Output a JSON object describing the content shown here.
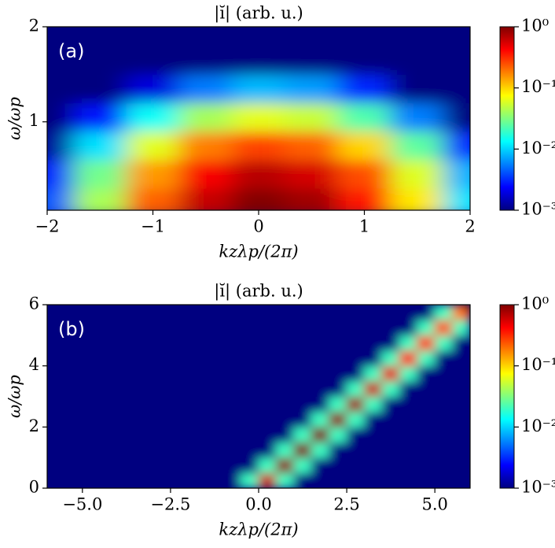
{
  "chart_data": [
    {
      "type": "heatmap",
      "title": "|ĭ| (arb. u.)",
      "panel_label": "(a)",
      "xlabel": "kzλp/(2π)",
      "ylabel": "ω/ωp",
      "x": [
        -2,
        -1.5,
        -1,
        -0.5,
        0,
        0.5,
        1,
        1.5,
        2
      ],
      "y": [
        0.15,
        0.45,
        0.75,
        1.05,
        1.35,
        1.65,
        1.95
      ],
      "z": [
        [
          0.0043,
          0.042,
          0.22,
          0.63,
          0.98,
          0.81,
          0.36,
          0.087,
          0.011
        ],
        [
          0.003,
          0.029,
          0.15,
          0.44,
          0.68,
          0.56,
          0.25,
          0.06,
          0.0079
        ],
        [
          0.0012,
          0.011,
          0.062,
          0.18,
          0.27,
          0.22,
          0.1,
          0.025,
          0.0032
        ],
        [
          0.001,
          0.0027,
          0.014,
          0.041,
          0.063,
          0.052,
          0.023,
          0.0056,
          0.001
        ],
        [
          0.001,
          0.001,
          0.0019,
          0.0055,
          0.0083,
          0.0069,
          0.0031,
          0.001,
          0.001
        ],
        [
          0.001,
          0.001,
          0.001,
          0.001,
          0.001,
          0.001,
          0.001,
          0.001,
          0.001
        ],
        [
          0.001,
          0.001,
          0.001,
          0.001,
          0.001,
          0.001,
          0.001,
          0.001,
          0.001
        ]
      ],
      "xlim": [
        -2,
        2
      ],
      "ylim": [
        0.07,
        2
      ],
      "xticks": [
        {
          "value": -2,
          "label": "−2"
        },
        {
          "value": -1,
          "label": "−1"
        },
        0,
        1,
        2
      ],
      "yticks": [
        1,
        2
      ],
      "colorbar": {
        "scale": "log",
        "colormap": "jet",
        "lim": [
          0.001,
          1
        ],
        "ticks": [
          {
            "value": 1,
            "label": "10⁰"
          },
          {
            "value": 0.1,
            "label": "10⁻¹"
          },
          {
            "value": 0.01,
            "label": "10⁻²"
          },
          {
            "value": 0.001,
            "label": "10⁻³"
          }
        ]
      }
    },
    {
      "type": "heatmap",
      "title": "|ĭ| (arb. u.)",
      "panel_label": "(b)",
      "xlabel": "kzλp/(2π)",
      "ylabel": "ω/ωp",
      "x": [
        -5.75,
        -5.25,
        -4.75,
        -4.25,
        -3.75,
        -3.25,
        -2.75,
        -2.25,
        -1.75,
        -1.25,
        -0.75,
        -0.25,
        0.25,
        0.75,
        1.25,
        1.75,
        2.25,
        2.75,
        3.25,
        3.75,
        4.25,
        4.75,
        5.25,
        5.75
      ],
      "y": [
        0.25,
        0.75,
        1.25,
        1.75,
        2.25,
        2.75,
        3.25,
        3.75,
        4.25,
        4.75,
        5.25,
        5.75
      ],
      "z": [
        [
          0.001,
          0.001,
          0.001,
          0.001,
          0.001,
          0.001,
          0.001,
          0.001,
          0.001,
          0.001,
          0.001,
          0.02,
          0.6,
          0.02,
          0.001,
          0.001,
          0.001,
          0.001,
          0.001,
          0.001,
          0.001,
          0.001,
          0.001,
          0.001
        ],
        [
          0.001,
          0.001,
          0.001,
          0.001,
          0.001,
          0.001,
          0.001,
          0.001,
          0.001,
          0.001,
          0.001,
          0.001,
          0.02,
          0.9,
          0.02,
          0.001,
          0.001,
          0.001,
          0.001,
          0.001,
          0.001,
          0.001,
          0.001,
          0.001
        ],
        [
          0.001,
          0.001,
          0.001,
          0.001,
          0.001,
          0.001,
          0.001,
          0.001,
          0.001,
          0.001,
          0.001,
          0.001,
          0.001,
          0.02,
          1,
          0.02,
          0.001,
          0.001,
          0.001,
          0.001,
          0.001,
          0.001,
          0.001,
          0.001
        ],
        [
          0.001,
          0.001,
          0.001,
          0.001,
          0.001,
          0.001,
          0.001,
          0.001,
          0.001,
          0.001,
          0.001,
          0.001,
          0.001,
          0.001,
          0.02,
          1,
          0.02,
          0.001,
          0.001,
          0.001,
          0.001,
          0.001,
          0.001,
          0.001
        ],
        [
          0.001,
          0.001,
          0.001,
          0.001,
          0.001,
          0.001,
          0.001,
          0.001,
          0.001,
          0.001,
          0.001,
          0.001,
          0.001,
          0.001,
          0.001,
          0.02,
          0.9,
          0.02,
          0.001,
          0.001,
          0.001,
          0.001,
          0.001,
          0.001
        ],
        [
          0.001,
          0.001,
          0.001,
          0.001,
          0.001,
          0.001,
          0.001,
          0.001,
          0.001,
          0.001,
          0.001,
          0.001,
          0.001,
          0.001,
          0.001,
          0.001,
          0.02,
          0.8,
          0.02,
          0.001,
          0.001,
          0.001,
          0.001,
          0.001
        ],
        [
          0.001,
          0.001,
          0.001,
          0.001,
          0.001,
          0.001,
          0.001,
          0.001,
          0.001,
          0.001,
          0.001,
          0.001,
          0.001,
          0.001,
          0.001,
          0.001,
          0.001,
          0.02,
          0.6,
          0.02,
          0.001,
          0.001,
          0.001,
          0.001
        ],
        [
          0.001,
          0.001,
          0.001,
          0.001,
          0.001,
          0.001,
          0.001,
          0.001,
          0.001,
          0.001,
          0.001,
          0.001,
          0.001,
          0.001,
          0.001,
          0.001,
          0.001,
          0.001,
          0.02,
          0.5,
          0.02,
          0.001,
          0.001,
          0.001
        ],
        [
          0.001,
          0.001,
          0.001,
          0.001,
          0.001,
          0.001,
          0.001,
          0.001,
          0.001,
          0.001,
          0.001,
          0.001,
          0.001,
          0.001,
          0.001,
          0.001,
          0.001,
          0.001,
          0.001,
          0.02,
          0.4,
          0.02,
          0.001,
          0.001
        ],
        [
          0.001,
          0.001,
          0.001,
          0.001,
          0.001,
          0.001,
          0.001,
          0.001,
          0.001,
          0.001,
          0.001,
          0.001,
          0.001,
          0.001,
          0.001,
          0.001,
          0.001,
          0.001,
          0.001,
          0.001,
          0.02,
          0.3,
          0.02,
          0.001
        ],
        [
          0.001,
          0.001,
          0.001,
          0.001,
          0.001,
          0.001,
          0.001,
          0.001,
          0.001,
          0.001,
          0.001,
          0.001,
          0.001,
          0.001,
          0.001,
          0.001,
          0.001,
          0.001,
          0.001,
          0.001,
          0.001,
          0.02,
          0.25,
          0.02
        ],
        [
          0.001,
          0.001,
          0.001,
          0.001,
          0.001,
          0.001,
          0.001,
          0.001,
          0.001,
          0.001,
          0.001,
          0.001,
          0.001,
          0.001,
          0.001,
          0.001,
          0.001,
          0.001,
          0.001,
          0.001,
          0.001,
          0.001,
          0.02,
          0.2
        ]
      ],
      "xlim": [
        -6,
        6
      ],
      "ylim": [
        0,
        6
      ],
      "xticks": [
        {
          "value": -5,
          "label": "−5.0"
        },
        {
          "value": -2.5,
          "label": "−2.5"
        },
        {
          "value": 0,
          "label": "0.0"
        },
        2.5,
        {
          "value": 5,
          "label": "5.0"
        }
      ],
      "yticks": [
        0,
        2,
        4,
        6
      ],
      "colorbar": {
        "scale": "log",
        "colormap": "jet",
        "lim": [
          0.001,
          1
        ],
        "ticks": [
          {
            "value": 1,
            "label": "10⁰"
          },
          {
            "value": 0.1,
            "label": "10⁻¹"
          },
          {
            "value": 0.01,
            "label": "10⁻²"
          },
          {
            "value": 0.001,
            "label": "10⁻³"
          }
        ]
      }
    }
  ]
}
